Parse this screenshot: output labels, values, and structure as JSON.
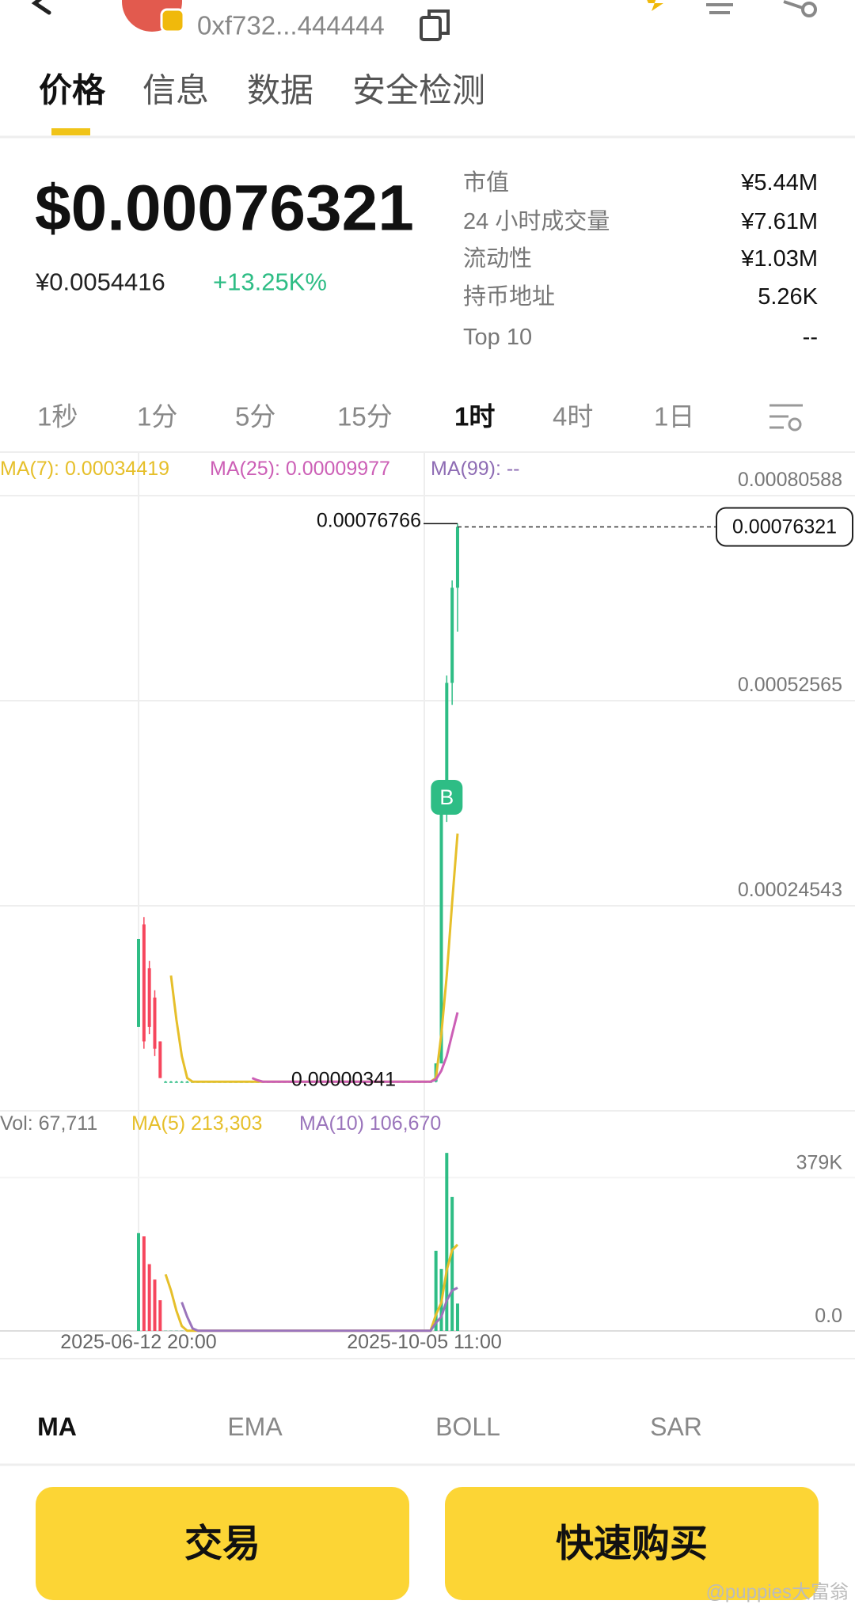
{
  "header": {
    "address": "0xf732...444444"
  },
  "tabs": [
    "价格",
    "信息",
    "数据",
    "安全检测"
  ],
  "price": {
    "usd": "$0.00076321",
    "cny": "¥0.0054416",
    "change": "+13.25K%"
  },
  "stats": [
    {
      "label": "市值",
      "value": "¥5.44M"
    },
    {
      "label": "24 小时成交量",
      "value": "¥7.61M"
    },
    {
      "label": "流动性",
      "value": "¥1.03M"
    },
    {
      "label": "持币地址",
      "value": "5.26K"
    },
    {
      "label": "Top 10",
      "value": "--"
    }
  ],
  "intervals": [
    "1秒",
    "1分",
    "5分",
    "15分",
    "1时",
    "4时",
    "1日"
  ],
  "chart_data": [
    {
      "type": "candlestick",
      "ylim": [
        -3.479e-05,
        0.00080588
      ],
      "yticks": [
        0.00080588,
        0.00052565,
        0.00024543
      ],
      "up_color": "#2ebd85",
      "down_color": "#f6465d",
      "candles": [
        [
          8e-05,
          0.0002,
          8e-05,
          0.0002
        ],
        [
          0.00022,
          0.00023,
          5e-05,
          6e-05
        ],
        [
          0.00016,
          0.00017,
          7e-05,
          8e-05
        ],
        [
          0.00012,
          0.00013,
          4e-05,
          5e-05
        ],
        [
          6e-05,
          6e-05,
          1e-05,
          1e-05
        ],
        [
          5e-06,
          6e-06,
          4e-06,
          5e-06
        ],
        [
          5e-06,
          6e-06,
          4e-06,
          5e-06
        ],
        [
          5e-06,
          6e-06,
          4e-06,
          5e-06
        ],
        [
          5e-06,
          6e-06,
          4e-06,
          5e-06
        ],
        [
          5e-06,
          6e-06,
          4e-06,
          5e-06
        ],
        [
          5e-06,
          6e-06,
          4e-06,
          5e-06
        ],
        [
          5e-06,
          6e-06,
          4e-06,
          5e-06
        ],
        [
          5e-06,
          6e-06,
          4e-06,
          5e-06
        ],
        [
          5e-06,
          6e-06,
          4e-06,
          5e-06
        ],
        [
          5e-06,
          6e-06,
          4e-06,
          5e-06
        ],
        [
          5e-06,
          6e-06,
          4e-06,
          5e-06
        ],
        [
          5e-06,
          6e-06,
          4e-06,
          5e-06
        ],
        [
          5e-06,
          6e-06,
          4e-06,
          5e-06
        ],
        [
          5e-06,
          6e-06,
          4e-06,
          5e-06
        ],
        [
          5e-06,
          6e-06,
          4e-06,
          5e-06
        ],
        [
          5e-06,
          6e-06,
          4e-06,
          5e-06
        ],
        [
          5e-06,
          6e-06,
          4e-06,
          5e-06
        ],
        [
          5e-06,
          6e-06,
          4e-06,
          5e-06
        ],
        [
          5e-06,
          6e-06,
          4e-06,
          5e-06
        ],
        [
          5e-06,
          6e-06,
          4e-06,
          5e-06
        ],
        [
          5e-06,
          6e-06,
          4e-06,
          5e-06
        ],
        [
          5e-06,
          6e-06,
          4e-06,
          5e-06
        ],
        [
          5e-06,
          6e-06,
          4e-06,
          5e-06
        ],
        [
          5e-06,
          6e-06,
          4e-06,
          5e-06
        ],
        [
          5e-06,
          6e-06,
          4e-06,
          5e-06
        ],
        [
          5e-06,
          6e-06,
          4e-06,
          5e-06
        ],
        [
          5e-06,
          6e-06,
          4e-06,
          5e-06
        ],
        [
          5e-06,
          6e-06,
          4e-06,
          5e-06
        ],
        [
          5e-06,
          6e-06,
          4e-06,
          5e-06
        ],
        [
          5e-06,
          6e-06,
          4e-06,
          5e-06
        ],
        [
          5e-06,
          6e-06,
          4e-06,
          5e-06
        ],
        [
          5e-06,
          6e-06,
          4e-06,
          5e-06
        ],
        [
          5e-06,
          6e-06,
          4e-06,
          5e-06
        ],
        [
          5e-06,
          6e-06,
          4e-06,
          5e-06
        ],
        [
          5e-06,
          6e-06,
          4e-06,
          5e-06
        ],
        [
          5e-06,
          6e-06,
          4e-06,
          5e-06
        ],
        [
          5e-06,
          6e-06,
          4e-06,
          5e-06
        ],
        [
          5e-06,
          6e-06,
          4e-06,
          5e-06
        ],
        [
          5e-06,
          6e-06,
          4e-06,
          5e-06
        ],
        [
          5e-06,
          6e-06,
          4e-06,
          5e-06
        ],
        [
          5e-06,
          6e-06,
          4e-06,
          5e-06
        ],
        [
          5e-06,
          6e-06,
          4e-06,
          5e-06
        ],
        [
          5e-06,
          6e-06,
          3.41e-06,
          5e-06
        ],
        [
          5e-06,
          6e-06,
          4e-06,
          5e-06
        ],
        [
          5e-06,
          6e-06,
          4e-06,
          5e-06
        ],
        [
          5e-06,
          6e-06,
          4e-06,
          5e-06
        ],
        [
          5e-06,
          6e-06,
          4e-06,
          5e-06
        ],
        [
          5e-06,
          6e-06,
          4e-06,
          5e-06
        ],
        [
          5e-06,
          6e-06,
          4e-06,
          5e-06
        ],
        [
          5e-06,
          6e-06,
          4e-06,
          5e-06
        ],
        [
          5e-06,
          3e-05,
          4e-06,
          3e-05
        ],
        [
          3e-05,
          0.00039,
          3e-05,
          0.00039
        ],
        [
          0.00039,
          0.00056,
          0.00036,
          0.00055
        ],
        [
          0.00055,
          0.00069,
          0.00052,
          0.00068
        ],
        [
          0.00068,
          0.00076766,
          0.00062,
          0.00076321
        ]
      ],
      "max_index": 59,
      "min_index": 47,
      "marker": {
        "index": 57,
        "label": "B"
      },
      "series": [
        {
          "name": "MA(7): 0.00034419",
          "color": "#e6bf2a",
          "values": [
            null,
            null,
            null,
            null,
            null,
            null,
            0.00015,
            9e-05,
            4e-05,
            1e-05,
            5e-06,
            5e-06,
            5e-06,
            5e-06,
            5e-06,
            5e-06,
            5e-06,
            5e-06,
            5e-06,
            5e-06,
            5e-06,
            5e-06,
            5e-06,
            5e-06,
            5e-06,
            5e-06,
            5e-06,
            5e-06,
            5e-06,
            5e-06,
            5e-06,
            5e-06,
            5e-06,
            5e-06,
            5e-06,
            5e-06,
            5e-06,
            5e-06,
            5e-06,
            5e-06,
            5e-06,
            5e-06,
            5e-06,
            5e-06,
            5e-06,
            5e-06,
            5e-06,
            5e-06,
            5e-06,
            5e-06,
            5e-06,
            5e-06,
            5e-06,
            5e-06,
            5e-06,
            1e-05,
            7e-05,
            0.00015,
            0.00025,
            0.00034419
          ]
        },
        {
          "name": "MA(25): 0.00009977",
          "color": "#cc5fb6",
          "values": [
            null,
            null,
            null,
            null,
            null,
            null,
            null,
            null,
            null,
            null,
            null,
            null,
            null,
            null,
            null,
            null,
            null,
            null,
            null,
            null,
            null,
            1e-05,
            7e-06,
            5e-06,
            5e-06,
            5e-06,
            5e-06,
            5e-06,
            5e-06,
            5e-06,
            5e-06,
            5e-06,
            5e-06,
            5e-06,
            5e-06,
            5e-06,
            5e-06,
            5e-06,
            5e-06,
            5e-06,
            5e-06,
            5e-06,
            5e-06,
            5e-06,
            5e-06,
            5e-06,
            5e-06,
            5e-06,
            5e-06,
            5e-06,
            5e-06,
            5e-06,
            5e-06,
            5e-06,
            5e-06,
            8e-06,
            2e-05,
            4e-05,
            7e-05,
            9.977e-05
          ]
        }
      ],
      "extra_legend": {
        "name": "MA(99): --",
        "color": "#8e6cb4"
      },
      "x_labels": [
        "2025-06-12 20:00",
        "2025-10-05 11:00"
      ]
    },
    {
      "type": "bar",
      "ylim": [
        0,
        544000
      ],
      "yticks": [
        {
          "value": 379000,
          "label": "379K"
        },
        {
          "value": 0,
          "label": "0.0"
        }
      ],
      "title": "Vol: 67,711",
      "values": [
        242000,
        234000,
        165000,
        127000,
        76000,
        500,
        500,
        500,
        500,
        500,
        500,
        500,
        500,
        500,
        500,
        500,
        500,
        500,
        500,
        500,
        500,
        500,
        500,
        500,
        500,
        500,
        500,
        500,
        500,
        500,
        500,
        500,
        500,
        500,
        500,
        500,
        500,
        500,
        500,
        500,
        500,
        500,
        500,
        500,
        500,
        500,
        500,
        500,
        500,
        500,
        500,
        500,
        500,
        500,
        500,
        198000,
        153000,
        440000,
        331000,
        67711
      ],
      "series": [
        {
          "name": "MA(5) 213,303",
          "color": "#e6bf2a",
          "values": [
            null,
            null,
            null,
            null,
            null,
            140000,
            100000,
            50000,
            12000,
            500,
            500,
            500,
            500,
            500,
            500,
            500,
            500,
            500,
            500,
            500,
            500,
            500,
            500,
            500,
            500,
            500,
            500,
            500,
            500,
            500,
            500,
            500,
            500,
            500,
            500,
            500,
            500,
            500,
            500,
            500,
            500,
            500,
            500,
            500,
            500,
            500,
            500,
            500,
            500,
            500,
            500,
            500,
            500,
            500,
            500,
            40000,
            70000,
            150000,
            200000,
            213303
          ]
        },
        {
          "name": "MA(10) 106,670",
          "color": "#9a74bb",
          "values": [
            null,
            null,
            null,
            null,
            null,
            null,
            null,
            null,
            71000,
            35000,
            6000,
            500,
            500,
            500,
            500,
            500,
            500,
            500,
            500,
            500,
            500,
            500,
            500,
            500,
            500,
            500,
            500,
            500,
            500,
            500,
            500,
            500,
            500,
            500,
            500,
            500,
            500,
            500,
            500,
            500,
            500,
            500,
            500,
            500,
            500,
            500,
            500,
            500,
            500,
            500,
            500,
            500,
            500,
            500,
            500,
            20000,
            35000,
            75000,
            100000,
            106670
          ]
        }
      ]
    }
  ],
  "indicators": [
    "MA",
    "EMA",
    "BOLL",
    "SAR"
  ],
  "buttons": [
    "交易",
    "快速购买"
  ],
  "watermark": "@puppies大富翁"
}
